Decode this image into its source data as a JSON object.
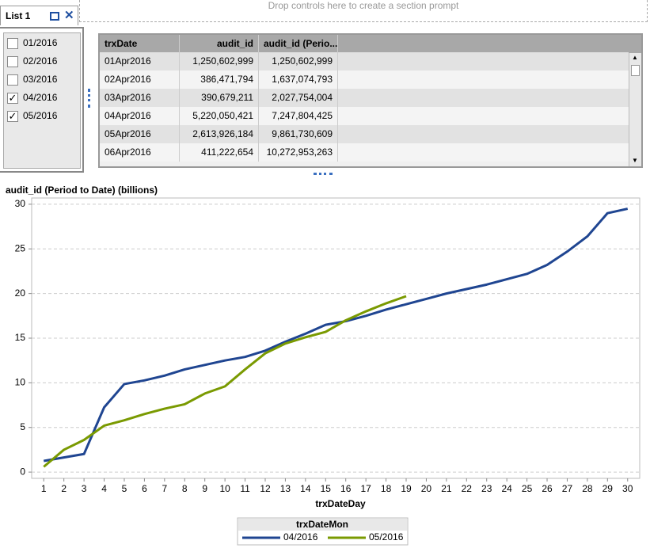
{
  "prompt_area": {
    "placeholder": "Drop controls here to create a section prompt"
  },
  "list": {
    "title": "List 1",
    "items": [
      {
        "label": "01/2016",
        "checked": false
      },
      {
        "label": "02/2016",
        "checked": false
      },
      {
        "label": "03/2016",
        "checked": false
      },
      {
        "label": "04/2016",
        "checked": true
      },
      {
        "label": "05/2016",
        "checked": true
      }
    ]
  },
  "table": {
    "columns": [
      "trxDate",
      "audit_id",
      "audit_id (Perio..."
    ],
    "rows": [
      [
        "01Apr2016",
        "1,250,602,999",
        "1,250,602,999"
      ],
      [
        "02Apr2016",
        "386,471,794",
        "1,637,074,793"
      ],
      [
        "03Apr2016",
        "390,679,211",
        "2,027,754,004"
      ],
      [
        "04Apr2016",
        "5,220,050,421",
        "7,247,804,425"
      ],
      [
        "05Apr2016",
        "2,613,926,184",
        "9,861,730,609"
      ],
      [
        "06Apr2016",
        "411,222,654",
        "10,272,953,263"
      ]
    ]
  },
  "chart_data": {
    "type": "line",
    "title": "audit_id (Period to Date) (billions)",
    "x_label": "trxDateDay",
    "legend_title": "trxDateMon",
    "legend": "bottom",
    "grid": true,
    "x": [
      1,
      2,
      3,
      4,
      5,
      6,
      7,
      8,
      9,
      10,
      11,
      12,
      13,
      14,
      15,
      16,
      17,
      18,
      19,
      20,
      21,
      22,
      23,
      24,
      25,
      26,
      27,
      28,
      29,
      30
    ],
    "xlim": [
      0.4,
      30.6
    ],
    "xticks": [
      1,
      2,
      3,
      4,
      5,
      6,
      7,
      8,
      9,
      10,
      11,
      12,
      13,
      14,
      15,
      16,
      17,
      18,
      19,
      20,
      21,
      22,
      23,
      24,
      25,
      26,
      27,
      28,
      29,
      30
    ],
    "ylim": [
      -0.7,
      30.7
    ],
    "yticks": [
      0,
      5,
      10,
      15,
      20,
      25,
      30
    ],
    "series": [
      {
        "name": "04/2016",
        "color": "#1f4591",
        "values": [
          1.25,
          1.64,
          2.03,
          7.25,
          9.86,
          10.27,
          10.8,
          11.5,
          12.0,
          12.5,
          12.9,
          13.6,
          14.6,
          15.5,
          16.5,
          16.9,
          17.5,
          18.2,
          18.8,
          19.4,
          20.0,
          20.5,
          21.0,
          21.6,
          22.2,
          23.2,
          24.7,
          26.4,
          29.0,
          29.5
        ]
      },
      {
        "name": "05/2016",
        "color": "#7a9a01",
        "values": [
          0.6,
          2.5,
          3.6,
          5.2,
          5.8,
          6.5,
          7.1,
          7.6,
          8.8,
          9.6,
          11.5,
          13.3,
          14.4,
          15.1,
          15.7,
          17.0,
          18.0,
          18.9,
          19.7,
          null,
          null,
          null,
          null,
          null,
          null,
          null,
          null,
          null,
          null,
          null
        ]
      }
    ]
  }
}
